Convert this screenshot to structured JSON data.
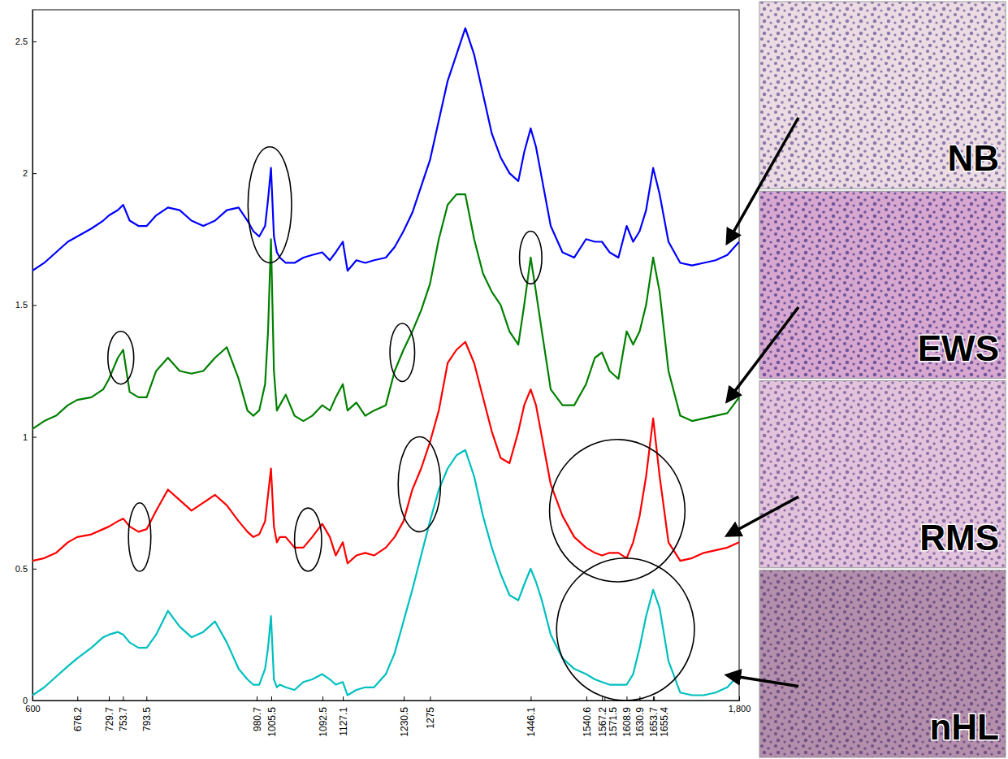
{
  "chart_data": {
    "type": "line",
    "x": [
      600,
      620,
      640,
      660,
      676,
      700,
      720,
      730,
      745,
      754,
      765,
      780,
      794,
      810,
      830,
      850,
      870,
      890,
      910,
      930,
      950,
      965,
      975,
      985,
      995,
      1000,
      1005,
      1010,
      1015,
      1020,
      1030,
      1045,
      1060,
      1075,
      1092,
      1105,
      1115,
      1127,
      1135,
      1150,
      1165,
      1180,
      1200,
      1215,
      1230,
      1245,
      1260,
      1275,
      1290,
      1305,
      1320,
      1335,
      1350,
      1365,
      1380,
      1395,
      1410,
      1425,
      1435,
      1446,
      1455,
      1465,
      1480,
      1500,
      1520,
      1540,
      1555,
      1567,
      1580,
      1595,
      1609,
      1620,
      1631,
      1642,
      1654,
      1665,
      1680,
      1700,
      1720,
      1740,
      1760,
      1780,
      1800
    ],
    "series": [
      {
        "name": "NB",
        "color": "#0000ff",
        "values": [
          1.63,
          1.66,
          1.7,
          1.74,
          1.76,
          1.79,
          1.82,
          1.84,
          1.86,
          1.88,
          1.82,
          1.8,
          1.8,
          1.84,
          1.87,
          1.86,
          1.82,
          1.8,
          1.82,
          1.86,
          1.87,
          1.82,
          1.78,
          1.76,
          1.8,
          1.9,
          2.02,
          1.76,
          1.7,
          1.68,
          1.66,
          1.66,
          1.68,
          1.69,
          1.7,
          1.67,
          1.7,
          1.74,
          1.63,
          1.67,
          1.66,
          1.67,
          1.68,
          1.72,
          1.78,
          1.85,
          1.95,
          2.05,
          2.2,
          2.35,
          2.45,
          2.55,
          2.45,
          2.3,
          2.15,
          2.06,
          2.0,
          1.97,
          2.08,
          2.17,
          2.1,
          1.98,
          1.8,
          1.7,
          1.68,
          1.75,
          1.74,
          1.74,
          1.7,
          1.68,
          1.8,
          1.74,
          1.78,
          1.86,
          2.02,
          1.92,
          1.74,
          1.66,
          1.65,
          1.66,
          1.67,
          1.69,
          1.74
        ]
      },
      {
        "name": "EWS",
        "color": "#008000",
        "values": [
          1.03,
          1.06,
          1.08,
          1.12,
          1.14,
          1.15,
          1.18,
          1.22,
          1.3,
          1.33,
          1.17,
          1.15,
          1.15,
          1.25,
          1.3,
          1.25,
          1.24,
          1.25,
          1.3,
          1.34,
          1.22,
          1.1,
          1.08,
          1.1,
          1.2,
          1.4,
          1.75,
          1.25,
          1.1,
          1.12,
          1.16,
          1.08,
          1.06,
          1.08,
          1.12,
          1.1,
          1.15,
          1.2,
          1.1,
          1.13,
          1.08,
          1.1,
          1.12,
          1.25,
          1.33,
          1.4,
          1.48,
          1.58,
          1.75,
          1.88,
          1.92,
          1.92,
          1.75,
          1.62,
          1.55,
          1.5,
          1.4,
          1.35,
          1.5,
          1.68,
          1.55,
          1.4,
          1.18,
          1.12,
          1.12,
          1.2,
          1.3,
          1.32,
          1.25,
          1.22,
          1.4,
          1.35,
          1.4,
          1.5,
          1.68,
          1.55,
          1.25,
          1.08,
          1.06,
          1.07,
          1.08,
          1.09,
          1.15
        ]
      },
      {
        "name": "RMS",
        "color": "#ff0000",
        "values": [
          0.53,
          0.54,
          0.56,
          0.6,
          0.62,
          0.63,
          0.65,
          0.66,
          0.68,
          0.69,
          0.66,
          0.64,
          0.65,
          0.72,
          0.8,
          0.76,
          0.72,
          0.75,
          0.78,
          0.74,
          0.68,
          0.64,
          0.62,
          0.63,
          0.68,
          0.78,
          0.88,
          0.66,
          0.6,
          0.62,
          0.62,
          0.58,
          0.58,
          0.62,
          0.67,
          0.62,
          0.55,
          0.6,
          0.52,
          0.55,
          0.56,
          0.55,
          0.58,
          0.62,
          0.68,
          0.8,
          0.88,
          0.98,
          1.1,
          1.28,
          1.33,
          1.36,
          1.28,
          1.15,
          1.02,
          0.92,
          0.9,
          1.02,
          1.12,
          1.18,
          1.12,
          1.0,
          0.82,
          0.7,
          0.62,
          0.58,
          0.56,
          0.55,
          0.56,
          0.56,
          0.54,
          0.6,
          0.7,
          0.85,
          1.07,
          0.85,
          0.6,
          0.53,
          0.54,
          0.56,
          0.57,
          0.58,
          0.6
        ]
      },
      {
        "name": "nHL",
        "color": "#00bfbf",
        "values": [
          0.02,
          0.05,
          0.09,
          0.13,
          0.16,
          0.2,
          0.24,
          0.25,
          0.26,
          0.25,
          0.22,
          0.2,
          0.2,
          0.25,
          0.34,
          0.28,
          0.24,
          0.26,
          0.3,
          0.22,
          0.12,
          0.08,
          0.06,
          0.06,
          0.12,
          0.2,
          0.32,
          0.08,
          0.05,
          0.06,
          0.05,
          0.04,
          0.07,
          0.08,
          0.1,
          0.08,
          0.06,
          0.07,
          0.02,
          0.04,
          0.05,
          0.05,
          0.1,
          0.18,
          0.3,
          0.42,
          0.55,
          0.68,
          0.8,
          0.88,
          0.93,
          0.95,
          0.85,
          0.7,
          0.58,
          0.48,
          0.4,
          0.38,
          0.44,
          0.5,
          0.45,
          0.38,
          0.25,
          0.16,
          0.12,
          0.1,
          0.08,
          0.07,
          0.06,
          0.06,
          0.06,
          0.1,
          0.2,
          0.32,
          0.42,
          0.35,
          0.15,
          0.03,
          0.02,
          0.02,
          0.03,
          0.05,
          0.1
        ]
      }
    ],
    "xlim": [
      600,
      1800
    ],
    "xticks": [
      600,
      676.2,
      729.7,
      753.7,
      793.5,
      980.7,
      1005.5,
      1092.5,
      1127.1,
      1230.5,
      1275,
      1446.1,
      1540.6,
      1567.2,
      1571.5,
      1608.9,
      1630.9,
      1653.7,
      1655.4,
      {
        "value": 1800,
        "label": "1,800"
      }
    ],
    "ylim": [
      0,
      2.62
    ],
    "yticks": [
      0,
      0.5,
      1,
      1.5,
      2,
      2.5
    ],
    "highlights": [
      {
        "x": 1003,
        "y": 1.88,
        "x_radius": 37,
        "y_radius": 0.22
      },
      {
        "x": 1446,
        "y": 1.68,
        "x_radius": 19,
        "y_radius": 0.1
      },
      {
        "x": 750,
        "y": 1.3,
        "x_radius": 22,
        "y_radius": 0.1
      },
      {
        "x": 1228,
        "y": 1.32,
        "x_radius": 21,
        "y_radius": 0.11
      },
      {
        "x": 782,
        "y": 0.62,
        "x_radius": 19,
        "y_radius": 0.13
      },
      {
        "x": 1068,
        "y": 0.61,
        "x_radius": 23,
        "y_radius": 0.12
      },
      {
        "x": 1257,
        "y": 0.82,
        "x_radius": 36,
        "y_radius": 0.18
      },
      {
        "x": 1593,
        "y": 0.72,
        "x_radius": 115,
        "y_radius": 0.27
      },
      {
        "x": 1607,
        "y": 0.27,
        "x_radius": 117,
        "y_radius": 0.27
      }
    ]
  }
}
